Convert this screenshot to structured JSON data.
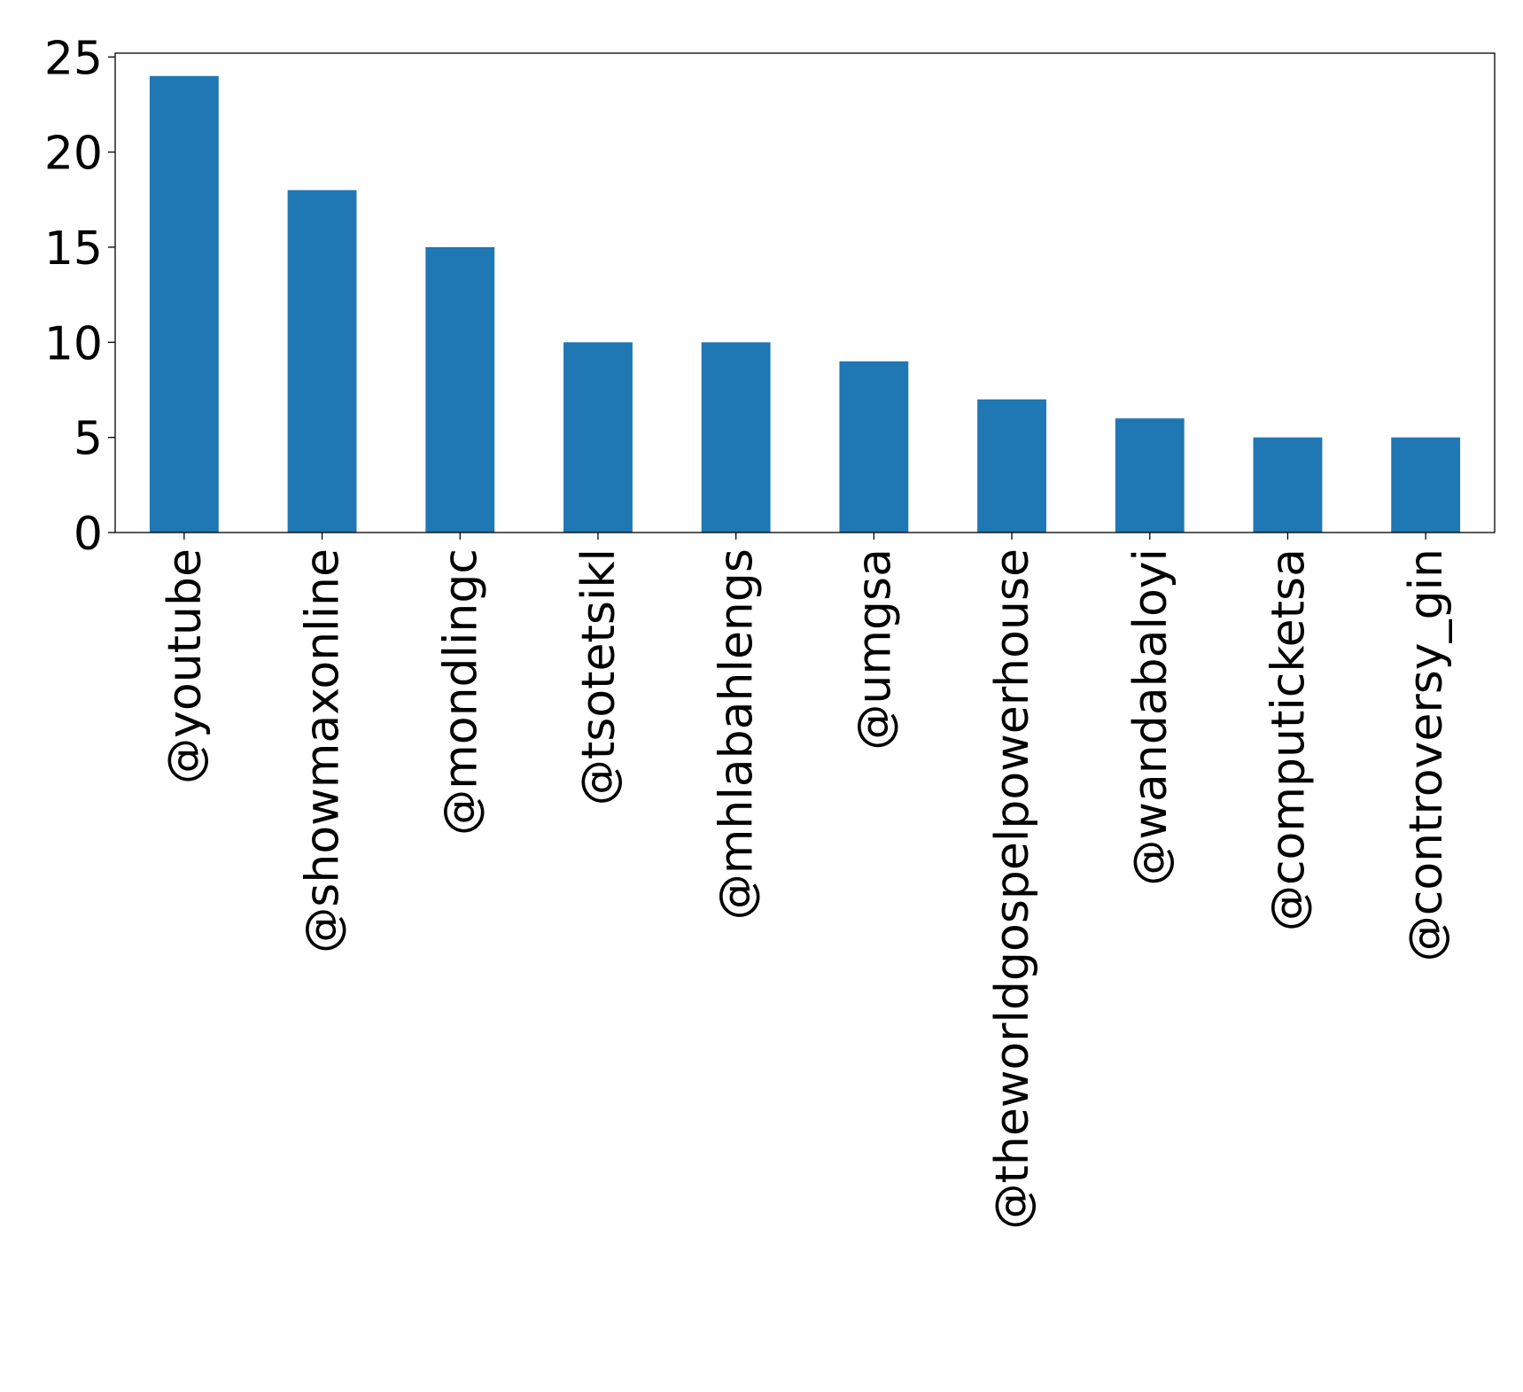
{
  "chart_data": {
    "type": "bar",
    "categories": [
      "@youtube",
      "@showmaxonline",
      "@mondlingc",
      "@tsotetsikl",
      "@mhlabahlengs",
      "@umgsa",
      "@theworldgospelpowerhouse",
      "@wandabaloyi",
      "@computicketsa",
      "@controversy_gin"
    ],
    "values": [
      24,
      18,
      15,
      10,
      10,
      9,
      7,
      6,
      5,
      5
    ],
    "title": "",
    "xlabel": "",
    "ylabel": "",
    "ylim": [
      0,
      25.2
    ],
    "yticks": [
      0,
      5,
      10,
      15,
      20,
      25
    ],
    "grid": false,
    "colors": {
      "bar": "#1f77b4"
    }
  }
}
